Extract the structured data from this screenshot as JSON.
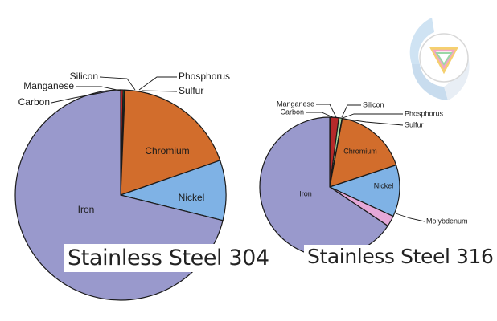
{
  "chart_data": [
    {
      "type": "pie",
      "title": "Stainless Steel 304",
      "unit": "percent",
      "slices": [
        {
          "label": "Carbon",
          "value": 0.08,
          "color": "#9999cc"
        },
        {
          "label": "Manganese",
          "value": 0.3,
          "color": "#d62a2a"
        },
        {
          "label": "Silicon",
          "value": 0.2,
          "color": "#1f9a3a"
        },
        {
          "label": "Phosphorus",
          "value": 0.045,
          "color": "#2f8a3a"
        },
        {
          "label": "Sulfur",
          "value": 0.03,
          "color": "#1a1a1a"
        },
        {
          "label": "Chromium",
          "value": 19.0,
          "color": "#d26d2c"
        },
        {
          "label": "Nickel",
          "value": 9.25,
          "color": "#7fb2e5"
        },
        {
          "label": "Iron",
          "value": 71.095,
          "color": "#9999cc"
        }
      ],
      "legend": "none (callout labels)"
    },
    {
      "type": "pie",
      "title": "Stainless Steel 316",
      "unit": "percent",
      "slices": [
        {
          "label": "Carbon",
          "value": 0.08,
          "color": "#9999cc"
        },
        {
          "label": "Manganese",
          "value": 2.0,
          "color": "#b52a2a"
        },
        {
          "label": "Silicon",
          "value": 0.75,
          "color": "#a9d9a0"
        },
        {
          "label": "Phosphorus",
          "value": 0.045,
          "color": "#cccccc"
        },
        {
          "label": "Sulfur",
          "value": 0.03,
          "color": "#999999"
        },
        {
          "label": "Chromium",
          "value": 17.0,
          "color": "#d26d2c"
        },
        {
          "label": "Nickel",
          "value": 12.0,
          "color": "#7fb2e5"
        },
        {
          "label": "Molybdenum",
          "value": 2.5,
          "color": "#e5a8d8"
        },
        {
          "label": "Iron",
          "value": 65.595,
          "color": "#9999cc"
        }
      ],
      "legend": "none (callout labels)"
    }
  ]
}
